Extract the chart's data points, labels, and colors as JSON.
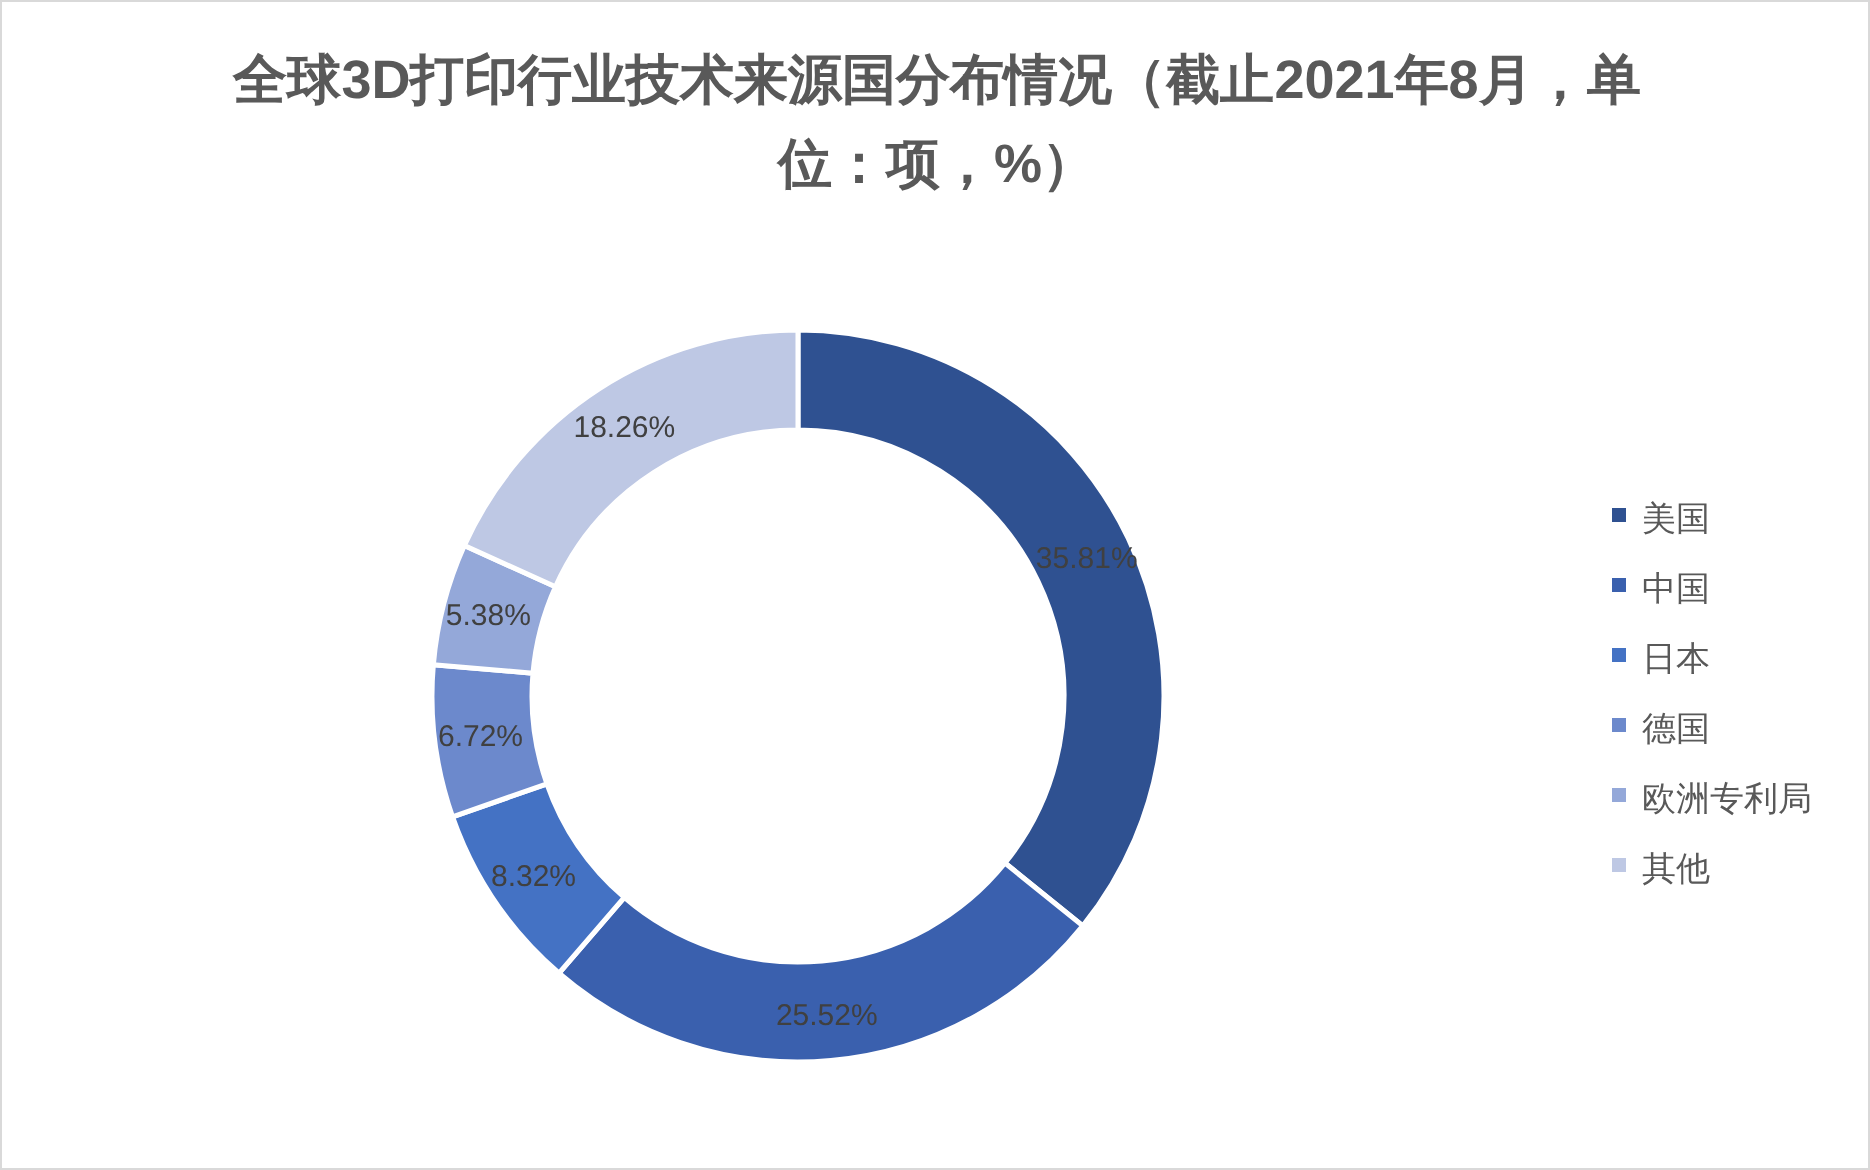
{
  "chart_data": {
    "type": "donut",
    "title": "全球3D打印行业技术来源国分布情况（截止2021年8月，单位：项，%）",
    "categories": [
      "美国",
      "中国",
      "日本",
      "德国",
      "欧洲专利局",
      "其他"
    ],
    "values": [
      35.81,
      25.52,
      8.32,
      6.72,
      5.38,
      18.26
    ],
    "colors": [
      "#2f5191",
      "#3a60ae",
      "#4472c4",
      "#6c89cc",
      "#94a8d9",
      "#bec8e4"
    ],
    "value_labels": [
      "35.81%",
      "25.52%",
      "8.32%",
      "6.72%",
      "5.38%",
      "18.26%"
    ],
    "legend": "right"
  }
}
